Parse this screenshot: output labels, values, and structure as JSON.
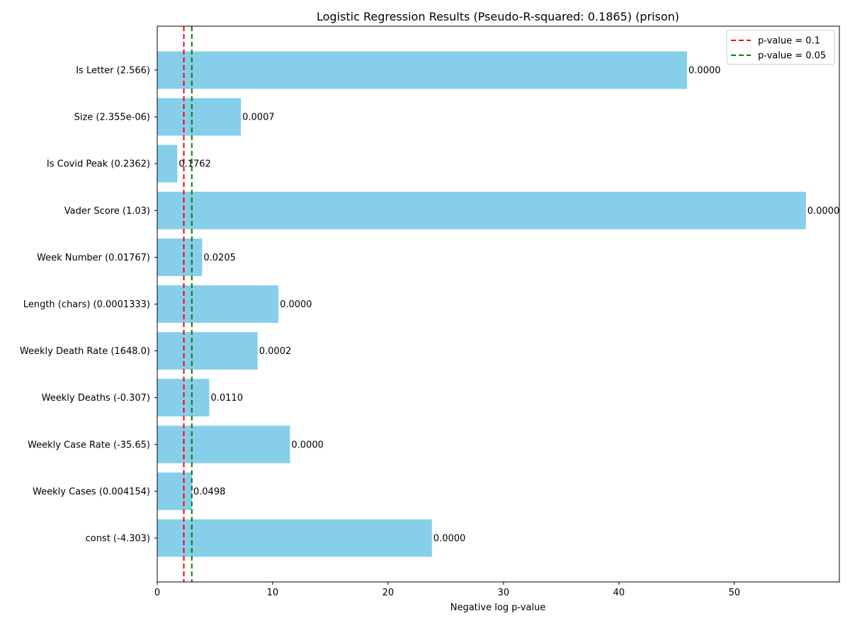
{
  "chart_data": {
    "type": "bar",
    "orientation": "horizontal",
    "title": "Logistic Regression Results (Pseudo-R-squared: 0.1865) (prison)",
    "xlabel": "Negative log p-value",
    "ylabel": "",
    "xlim": [
      0,
      59.1
    ],
    "xticks": [
      "0",
      "10",
      "20",
      "30",
      "40",
      "50"
    ],
    "bar_color": "#87ceeb",
    "categories": [
      "Is Letter (2.566)",
      "Size (2.355e-06)",
      "Is Covid Peak (0.2362)",
      "Vader Score (1.03)",
      "Week Number (0.01767)",
      "Length (chars) (0.0001333)",
      "Weekly Death Rate (1648.0)",
      "Weekly Deaths (-0.307)",
      "Weekly Case Rate (-35.65)",
      "Weekly Cases (0.004154)",
      "const (-4.303)"
    ],
    "values": [
      45.9,
      7.25,
      1.74,
      56.2,
      3.89,
      10.5,
      8.7,
      4.51,
      11.5,
      3.0,
      23.8
    ],
    "p_value_labels": [
      "0.0000",
      "0.0007",
      "0.1762",
      "0.0000",
      "0.0205",
      "0.0000",
      "0.0002",
      "0.0110",
      "0.0000",
      "0.0498",
      "0.0000"
    ],
    "reference_lines": [
      {
        "name": "p-value = 0.1",
        "x": 2.303,
        "color": "#ff0000",
        "style": "dashed"
      },
      {
        "name": "p-value = 0.05",
        "x": 2.996,
        "color": "#008000",
        "style": "dashed"
      }
    ],
    "legend_position": "top-right",
    "grid": false
  }
}
